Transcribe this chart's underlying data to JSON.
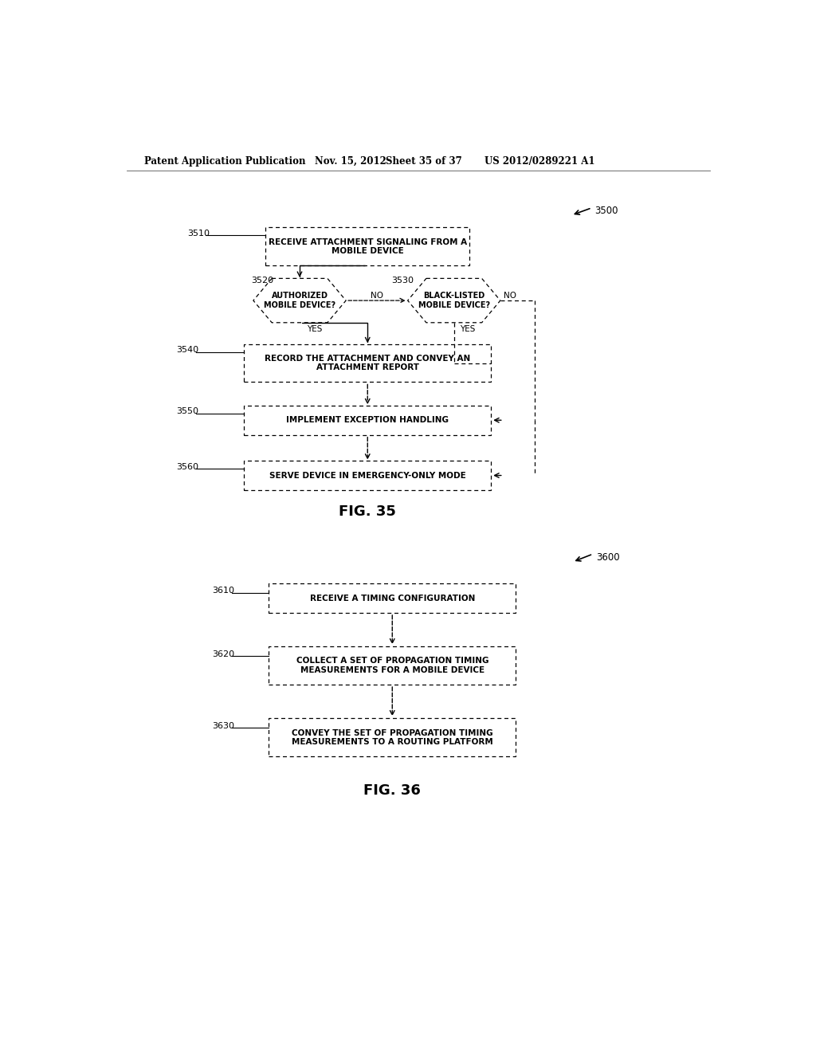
{
  "bg_color": "#ffffff",
  "header_text": "Patent Application Publication",
  "header_date": "Nov. 15, 2012",
  "header_sheet": "Sheet 35 of 37",
  "header_patent": "US 2012/0289221 A1",
  "fig35_label": "FIG. 35",
  "fig36_label": "FIG. 36",
  "fig35_ref": "3500",
  "fig36_ref": "3600",
  "box_color": "#ffffff",
  "box_edge": "#000000",
  "text_color": "#000000"
}
